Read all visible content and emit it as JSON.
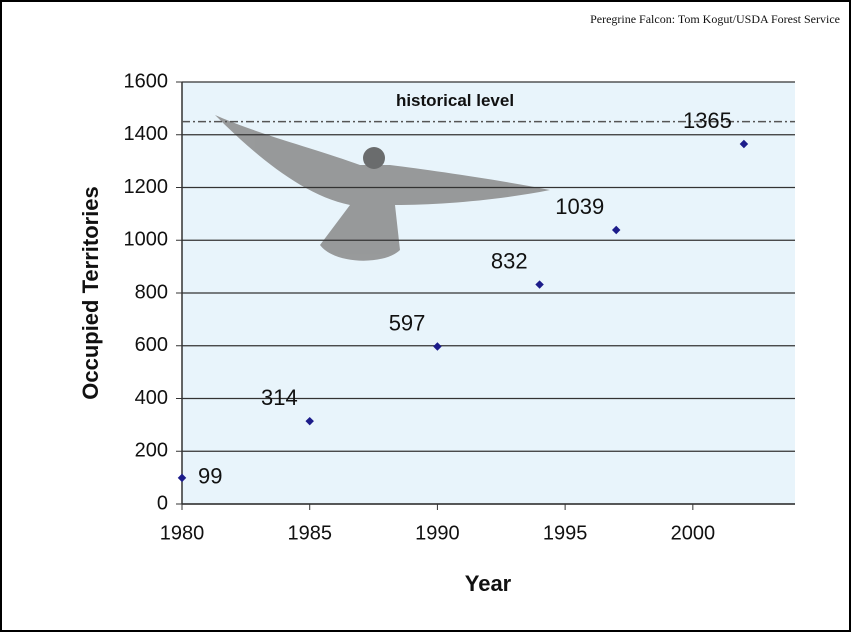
{
  "chart_data": {
    "type": "scatter",
    "credit": "Peregrine Falcon: Tom Kogut/USDA Forest Service",
    "x_label": "Year",
    "y_label": "Occupied Territories",
    "x": [
      1980,
      1985,
      1990,
      1994,
      1997,
      2002
    ],
    "values": [
      99,
      314,
      597,
      832,
      1039,
      1365
    ],
    "color": "#1c1c8a",
    "xlim": [
      1980,
      2004
    ],
    "xticks": [
      1980,
      1985,
      1990,
      1995,
      2000
    ],
    "ylim": [
      0,
      1600
    ],
    "yticks": [
      0,
      200,
      400,
      600,
      800,
      1000,
      1200,
      1400,
      1600
    ],
    "grid": true,
    "reference_line": {
      "value": 1450,
      "label": "historical level"
    }
  }
}
